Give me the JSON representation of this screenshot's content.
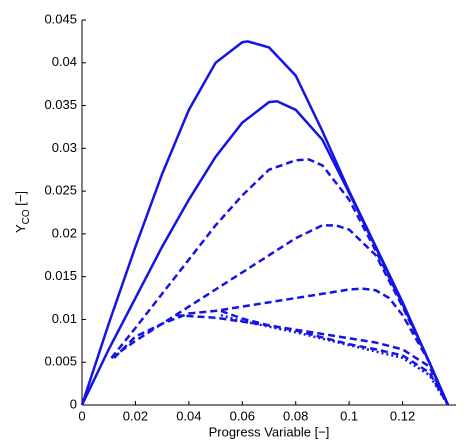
{
  "chart_data": {
    "type": "line",
    "xlabel": "Progress Variable [−]",
    "ylabel": {
      "main": "Y",
      "subscript": "CO",
      "unit": " [−]"
    },
    "xlim": [
      0,
      0.14
    ],
    "ylim": [
      0,
      0.045
    ],
    "xticks": [
      0,
      0.02,
      0.04,
      0.06,
      0.08,
      0.1,
      0.12
    ],
    "yticks": [
      0,
      0.005,
      0.01,
      0.015,
      0.02,
      0.025,
      0.03,
      0.035,
      0.04,
      0.045
    ],
    "grid": false,
    "series": [
      {
        "color": "#1414e6",
        "style": "solid",
        "x": [
          0,
          0.01,
          0.02,
          0.03,
          0.04,
          0.05,
          0.06,
          0.062,
          0.07,
          0.08,
          0.09,
          0.1,
          0.11,
          0.12,
          0.13,
          0.137
        ],
        "values": [
          0,
          0.0095,
          0.0185,
          0.027,
          0.0345,
          0.04,
          0.0424,
          0.0425,
          0.0418,
          0.0385,
          0.032,
          0.025,
          0.0185,
          0.012,
          0.005,
          0
        ]
      },
      {
        "color": "#1414e6",
        "style": "solid",
        "x": [
          0,
          0.01,
          0.02,
          0.03,
          0.04,
          0.05,
          0.06,
          0.07,
          0.073,
          0.08,
          0.09,
          0.1,
          0.11,
          0.12,
          0.13,
          0.137
        ],
        "values": [
          0,
          0.0065,
          0.0125,
          0.0185,
          0.024,
          0.029,
          0.033,
          0.0354,
          0.0355,
          0.0345,
          0.031,
          0.0248,
          0.0184,
          0.0119,
          0.005,
          0
        ]
      },
      {
        "color": "#1414e6",
        "style": "dashed",
        "x": [
          0.011,
          0.02,
          0.03,
          0.04,
          0.05,
          0.06,
          0.07,
          0.08,
          0.085,
          0.09,
          0.1,
          0.11,
          0.12,
          0.13,
          0.137
        ],
        "values": [
          0.0055,
          0.009,
          0.013,
          0.017,
          0.021,
          0.0245,
          0.0275,
          0.0286,
          0.0287,
          0.028,
          0.024,
          0.018,
          0.0118,
          0.005,
          0
        ]
      },
      {
        "color": "#1414e6",
        "style": "dashed",
        "x": [
          0.011,
          0.02,
          0.03,
          0.04,
          0.05,
          0.06,
          0.07,
          0.08,
          0.09,
          0.095,
          0.1,
          0.11,
          0.12,
          0.13,
          0.137
        ],
        "values": [
          0.0055,
          0.0075,
          0.0095,
          0.0115,
          0.0135,
          0.0155,
          0.0175,
          0.0195,
          0.021,
          0.021,
          0.0205,
          0.0175,
          0.0115,
          0.005,
          0
        ]
      },
      {
        "color": "#1414e6",
        "style": "dashed",
        "x": [
          0.012,
          0.02,
          0.03,
          0.04,
          0.05,
          0.06,
          0.07,
          0.08,
          0.09,
          0.1,
          0.105,
          0.11,
          0.115,
          0.12,
          0.13,
          0.137
        ],
        "values": [
          0.0055,
          0.008,
          0.0095,
          0.0107,
          0.011,
          0.0115,
          0.012,
          0.0125,
          0.013,
          0.0135,
          0.0136,
          0.0134,
          0.0125,
          0.0105,
          0.005,
          0
        ]
      },
      {
        "color": "#1414e6",
        "style": "dashed",
        "x": [
          0.035,
          0.05,
          0.07,
          0.09,
          0.1,
          0.11,
          0.12,
          0.13,
          0.137
        ],
        "values": [
          0.0105,
          0.0102,
          0.0093,
          0.0083,
          0.0078,
          0.0073,
          0.0065,
          0.0045,
          0
        ]
      },
      {
        "color": "#1414e6",
        "style": "dashed",
        "x": [
          0.052,
          0.06,
          0.07,
          0.08,
          0.09,
          0.1,
          0.11,
          0.12,
          0.13,
          0.137
        ],
        "values": [
          0.011,
          0.0101,
          0.0093,
          0.0087,
          0.0079,
          0.0071,
          0.0065,
          0.0058,
          0.0038,
          0
        ]
      },
      {
        "color": "#1414e6",
        "style": "dotted",
        "x": [
          0.052,
          0.06,
          0.08,
          0.1,
          0.12,
          0.13,
          0.137
        ],
        "values": [
          0.0105,
          0.0098,
          0.0085,
          0.007,
          0.0055,
          0.0035,
          0
        ]
      }
    ]
  }
}
